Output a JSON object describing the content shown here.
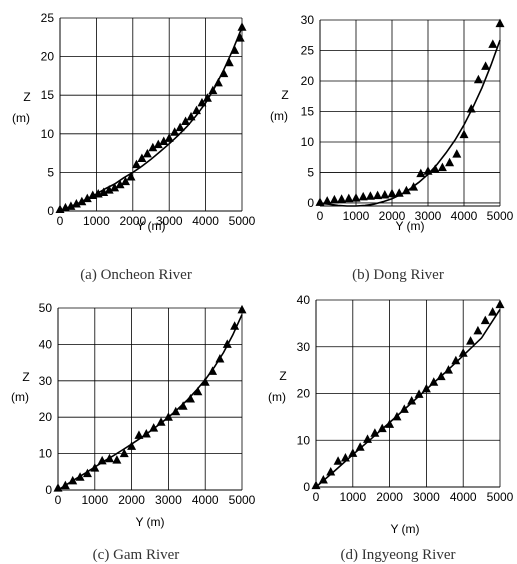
{
  "chart_data": [
    {
      "type": "scatter",
      "caption": "(a) Oncheon River",
      "xlabel": "Y (m)",
      "ylabel_top": "Z",
      "ylabel_bottom": "(m)",
      "xlim": [
        0,
        5000
      ],
      "ylim": [
        0,
        25
      ],
      "xticks": [
        "0",
        "1000",
        "2000",
        "3000",
        "4000",
        "5000"
      ],
      "yticks": [
        "0",
        "5",
        "10",
        "15",
        "20",
        "25"
      ],
      "grid": true,
      "series": [
        {
          "marker": "triangle",
          "x": [
            0,
            150,
            300,
            450,
            600,
            750,
            900,
            1050,
            1200,
            1350,
            1500,
            1650,
            1800,
            1950,
            2100,
            2250,
            2400,
            2550,
            2700,
            2850,
            3000,
            3150,
            3300,
            3450,
            3600,
            3750,
            3900,
            4050,
            4200,
            4350,
            4500,
            4650,
            4800,
            4950,
            5000
          ],
          "y": [
            0.2,
            0.4,
            0.6,
            0.9,
            1.2,
            1.6,
            2.0,
            2.2,
            2.4,
            2.7,
            3.0,
            3.4,
            3.8,
            4.4,
            6.0,
            6.8,
            7.4,
            8.2,
            8.6,
            9.0,
            9.4,
            10.2,
            10.8,
            11.6,
            12.2,
            13.0,
            14.0,
            14.6,
            15.6,
            16.6,
            17.8,
            19.2,
            20.8,
            22.4,
            23.8
          ]
        },
        {
          "marker": "line",
          "x": [
            0,
            250,
            500,
            750,
            1000,
            1250,
            1500,
            1750,
            2000,
            2250,
            2500,
            2750,
            3000,
            3250,
            3500,
            3750,
            4000,
            4250,
            4500,
            4750,
            5000
          ],
          "y": [
            0,
            0.5,
            1.0,
            1.6,
            2.2,
            2.9,
            3.5,
            4.3,
            5.0,
            5.8,
            6.7,
            7.7,
            8.7,
            9.8,
            11.0,
            12.4,
            14.0,
            16.0,
            18.3,
            20.9,
            23.8
          ]
        }
      ]
    },
    {
      "type": "scatter",
      "caption": "(b) Dong River",
      "xlabel": "Y (m)",
      "ylabel_top": "Z",
      "ylabel_bottom": "(m)",
      "xlim": [
        0,
        5000
      ],
      "ylim": [
        -0.5,
        30
      ],
      "xticks": [
        "0",
        "1000",
        "2000",
        "3000",
        "4000",
        "5000"
      ],
      "yticks": [
        "0",
        "5",
        "10",
        "15",
        "20",
        "25",
        "30"
      ],
      "grid": true,
      "series": [
        {
          "marker": "triangle",
          "x": [
            0,
            200,
            400,
            600,
            800,
            1000,
            1200,
            1400,
            1600,
            1800,
            2000,
            2200,
            2400,
            2600,
            2800,
            3000,
            3200,
            3400,
            3600,
            3800,
            4000,
            4200,
            4400,
            4600,
            4800,
            5000
          ],
          "y": [
            0.1,
            0.3,
            0.5,
            0.6,
            0.7,
            0.8,
            1.0,
            1.1,
            1.2,
            1.3,
            1.5,
            1.6,
            2.0,
            2.6,
            4.8,
            5.2,
            5.5,
            5.8,
            6.6,
            8.0,
            11.2,
            15.4,
            20.2,
            22.4,
            26.0,
            29.4
          ]
        },
        {
          "marker": "line",
          "x": [
            0,
            250,
            500,
            750,
            1000,
            1250,
            1500,
            1750,
            2000,
            2250,
            2500,
            2750,
            3000,
            3250,
            3500,
            3750,
            4000,
            4250,
            4500,
            4750,
            5000
          ],
          "y": [
            0,
            -0.2,
            -0.4,
            -0.5,
            -0.5,
            -0.4,
            -0.2,
            0.2,
            0.7,
            1.4,
            2.3,
            3.4,
            4.7,
            6.3,
            8.2,
            10.3,
            12.8,
            15.7,
            18.9,
            22.6,
            26.7
          ]
        }
      ]
    },
    {
      "type": "scatter",
      "caption": "(c) Gam River",
      "xlabel": "Y (m)",
      "ylabel_top": "Z",
      "ylabel_bottom": "(m)",
      "xlim": [
        0,
        5000
      ],
      "ylim": [
        0,
        50
      ],
      "xticks": [
        "0",
        "1000",
        "2000",
        "3000",
        "4000",
        "5000"
      ],
      "yticks": [
        "0",
        "10",
        "20",
        "30",
        "40",
        "50"
      ],
      "grid": true,
      "series": [
        {
          "marker": "triangle",
          "x": [
            0,
            200,
            400,
            600,
            800,
            1000,
            1200,
            1400,
            1600,
            1800,
            2000,
            2200,
            2400,
            2600,
            2800,
            3000,
            3200,
            3400,
            3600,
            3800,
            4000,
            4200,
            4400,
            4600,
            4800,
            5000
          ],
          "y": [
            0.5,
            1.2,
            2.5,
            3.5,
            4.5,
            6.0,
            8.0,
            8.6,
            8.2,
            10.0,
            12.0,
            15.0,
            15.4,
            17.0,
            18.6,
            20.0,
            21.5,
            23.0,
            25.0,
            27.0,
            29.6,
            32.6,
            36.0,
            40.0,
            45.0,
            49.5
          ]
        },
        {
          "marker": "line",
          "x": [
            0,
            250,
            500,
            750,
            1000,
            1250,
            1500,
            1750,
            2000,
            2250,
            2500,
            2750,
            3000,
            3250,
            3500,
            3750,
            4000,
            4250,
            4500,
            4750,
            5000
          ],
          "y": [
            0,
            1.6,
            3.2,
            4.7,
            6.3,
            7.9,
            9.4,
            11.0,
            12.6,
            14.3,
            16.1,
            18.0,
            20.0,
            22.2,
            24.6,
            27.3,
            30.3,
            33.8,
            37.8,
            42.6,
            48.2
          ]
        }
      ]
    },
    {
      "type": "scatter",
      "caption": "(d) Ingyeong River",
      "xlabel": "Y (m)",
      "ylabel_top": "Z",
      "ylabel_bottom": "(m)",
      "xlim": [
        0,
        5000
      ],
      "ylim": [
        0,
        40
      ],
      "xticks": [
        "0",
        "1000",
        "2000",
        "3000",
        "4000",
        "5000"
      ],
      "yticks": [
        "0",
        "10",
        "20",
        "30",
        "40"
      ],
      "grid": true,
      "series": [
        {
          "marker": "triangle",
          "x": [
            0,
            200,
            400,
            600,
            800,
            1000,
            1200,
            1400,
            1600,
            1800,
            2000,
            2200,
            2400,
            2600,
            2800,
            3000,
            3200,
            3400,
            3600,
            3800,
            4000,
            4200,
            4400,
            4600,
            4800,
            5000
          ],
          "y": [
            0.3,
            1.5,
            3.2,
            5.5,
            6.2,
            7.2,
            8.5,
            10.2,
            11.5,
            12.5,
            13.4,
            15.0,
            16.6,
            18.4,
            19.8,
            21.0,
            22.4,
            23.6,
            25.0,
            27.0,
            28.6,
            31.2,
            33.4,
            35.6,
            37.4,
            39.0
          ]
        },
        {
          "marker": "line",
          "x": [
            0,
            500,
            1000,
            1500,
            2000,
            2500,
            3000,
            3500,
            4000,
            4500,
            5000
          ],
          "y": [
            0,
            3.4,
            6.9,
            10.3,
            13.8,
            17.3,
            20.9,
            24.4,
            28.1,
            31.9,
            38.0
          ]
        }
      ]
    }
  ]
}
